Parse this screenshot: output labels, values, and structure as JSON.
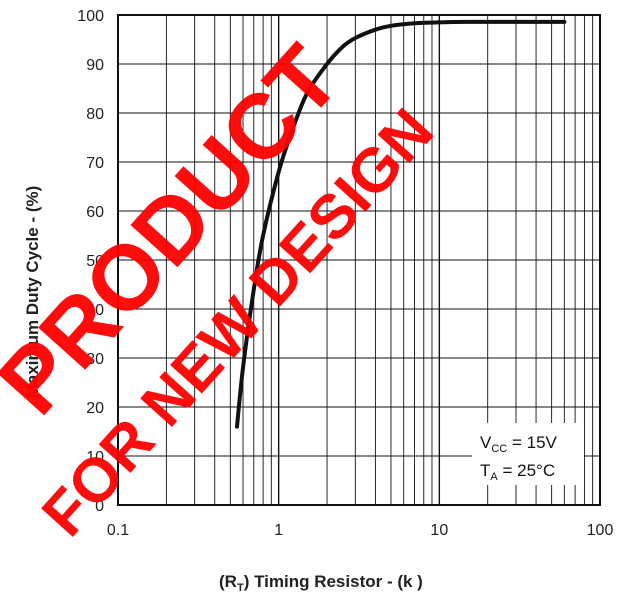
{
  "chart_data": {
    "type": "line",
    "x_scale": "log",
    "xlim": [
      0.1,
      100
    ],
    "ylim": [
      0,
      100
    ],
    "x_ticks": [
      "0.1",
      "1",
      "10",
      "100"
    ],
    "y_ticks": [
      "0",
      "10",
      "20",
      "30",
      "40",
      "50",
      "60",
      "70",
      "80",
      "90",
      "100"
    ],
    "xlabel": {
      "prefix": "(R",
      "sub": "T",
      "suffix": ")  Timing Resistor - (k   )"
    },
    "ylabel": "Maximum Duty Cycle - (%)",
    "grid": true,
    "annotation": {
      "line1": {
        "main": "V",
        "sub": "CC",
        "rest": " = 15V"
      },
      "line2": {
        "main": "T",
        "sub": "A",
        "rest": " = 25°C"
      }
    },
    "series": [
      {
        "x": [
          0.55,
          0.6,
          0.7,
          0.8,
          1.0,
          1.2,
          1.5,
          2.0,
          2.5,
          3.0,
          4.0,
          5.0,
          7.0,
          10,
          15,
          20,
          30,
          40,
          60
        ],
        "y": [
          16,
          28,
          44,
          55,
          68,
          76,
          84,
          90,
          93.5,
          95.3,
          97,
          97.8,
          98.3,
          98.5,
          98.6,
          98.6,
          98.6,
          98.6,
          98.6
        ]
      }
    ]
  },
  "watermark": {
    "line1": "PRODUCT",
    "line2": "FOR NEW DESIGN",
    "color": "#ff0000"
  },
  "colors": {
    "curve": "#111111",
    "grid": "#111111",
    "background": "#ffffff"
  }
}
